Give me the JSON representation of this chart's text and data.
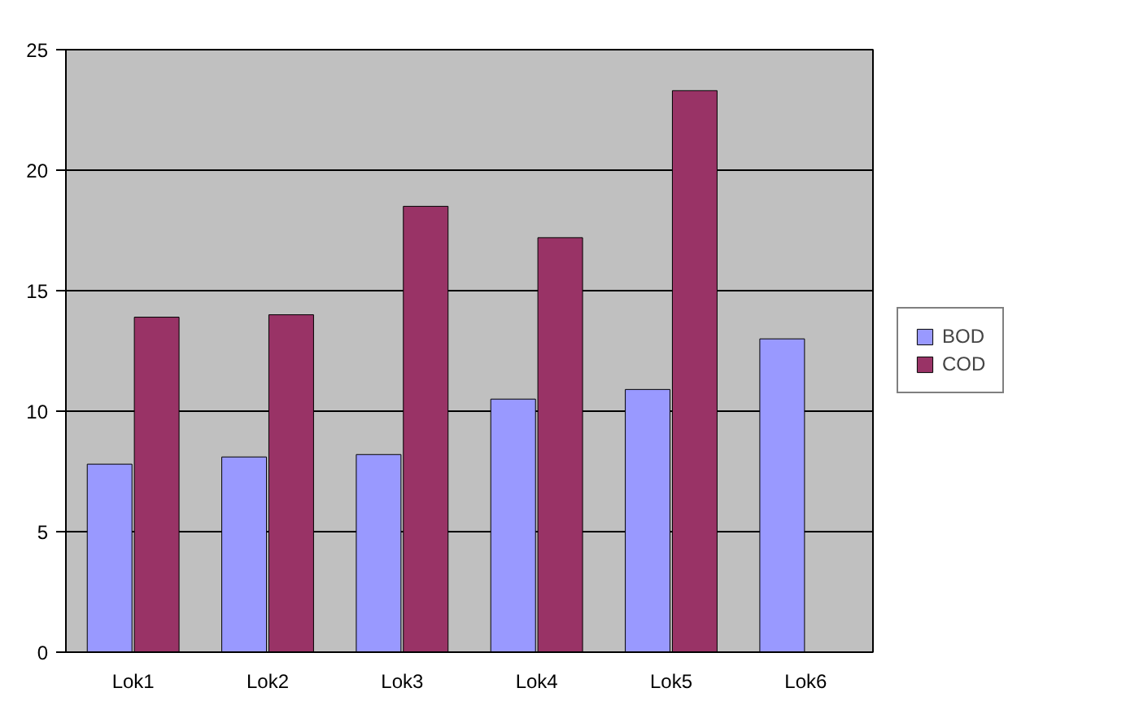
{
  "chart_data": {
    "type": "bar",
    "categories": [
      "Lok1",
      "Lok2",
      "Lok3",
      "Lok4",
      "Lok5",
      "Lok6"
    ],
    "series": [
      {
        "name": "BOD",
        "color": "#9999ff",
        "values": [
          7.8,
          8.1,
          8.2,
          10.5,
          10.9,
          13.0
        ]
      },
      {
        "name": "COD",
        "color": "#993366",
        "values": [
          13.9,
          14.0,
          18.5,
          17.2,
          23.3,
          null
        ]
      }
    ],
    "ylim": [
      0,
      25
    ],
    "yticks": [
      0,
      5,
      10,
      15,
      20,
      25
    ],
    "grid": "y",
    "legend": "right"
  }
}
